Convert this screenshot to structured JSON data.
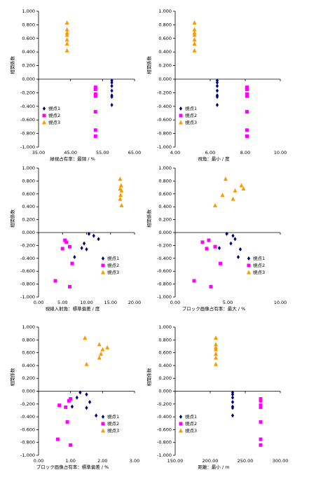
{
  "chart_data": [
    {
      "type": "scatter",
      "xlabel": "緑視占有率：最頻 / %",
      "ylabel": "相関係数",
      "legend": "lower left",
      "xlim": [
        35,
        65
      ],
      "xticks": [
        {
          "value": 35,
          "label": "35.00"
        },
        {
          "value": 45,
          "label": "45.00"
        },
        {
          "value": 55,
          "label": "55.00"
        },
        {
          "value": 65,
          "label": "65.00"
        }
      ],
      "ylim": [
        -1,
        1
      ],
      "yticks": [
        {
          "value": 1,
          "label": "1.000"
        },
        {
          "value": 0.8,
          "label": "0.800"
        },
        {
          "value": 0.6,
          "label": "0.600"
        },
        {
          "value": 0.4,
          "label": "0.400"
        },
        {
          "value": 0.2,
          "label": "0.200"
        },
        {
          "value": 0,
          "label": "0.000"
        },
        {
          "value": -0.2,
          "label": "-0.200"
        },
        {
          "value": -0.4,
          "label": "-0.400"
        },
        {
          "value": -0.6,
          "label": "-0.600"
        },
        {
          "value": -0.8,
          "label": "-0.800"
        },
        {
          "value": -1,
          "label": "-1.000"
        }
      ],
      "series": [
        {
          "name": "視点1",
          "color": "#000080",
          "marker": "diamond",
          "x": [
            57.9,
            57.9,
            57.9,
            57.9,
            57.9,
            57.9,
            57.9
          ],
          "values": [
            -0.02,
            -0.05,
            -0.1,
            -0.17,
            -0.24,
            -0.26,
            -0.38
          ]
        },
        {
          "name": "視点2",
          "color": "#ff00ff",
          "marker": "square",
          "x": [
            52.8,
            52.8,
            52.8,
            52.8,
            52.8,
            52.8,
            52.8
          ],
          "values": [
            -0.12,
            -0.15,
            -0.22,
            -0.25,
            -0.48,
            -0.75,
            -0.84
          ]
        },
        {
          "name": "視点3",
          "color": "#ff9900",
          "marker": "triangle",
          "x": [
            43.9,
            43.9,
            43.9,
            43.9,
            43.9,
            43.9,
            43.9
          ],
          "values": [
            0.83,
            0.73,
            0.68,
            0.65,
            0.58,
            0.52,
            0.42
          ]
        }
      ]
    },
    {
      "type": "scatter",
      "xlabel": "視角：最小 / 度",
      "ylabel": "相関係数",
      "legend": "lower left",
      "xlim": [
        4,
        10
      ],
      "xticks": [
        {
          "value": 4,
          "label": "4.00"
        },
        {
          "value": 6,
          "label": "6.00"
        },
        {
          "value": 8,
          "label": "8.00"
        },
        {
          "value": 10,
          "label": "10.00"
        }
      ],
      "ylim": [
        -1,
        1
      ],
      "yticks": [
        {
          "value": 1,
          "label": "1.000"
        },
        {
          "value": 0.8,
          "label": "0.800"
        },
        {
          "value": 0.6,
          "label": "0.600"
        },
        {
          "value": 0.4,
          "label": "0.400"
        },
        {
          "value": 0.2,
          "label": "0.200"
        },
        {
          "value": 0,
          "label": "0.000"
        },
        {
          "value": -0.2,
          "label": "-0.200"
        },
        {
          "value": -0.4,
          "label": "-0.400"
        },
        {
          "value": -0.6,
          "label": "-0.600"
        },
        {
          "value": -0.8,
          "label": "-0.800"
        },
        {
          "value": -1,
          "label": "-1.000"
        }
      ],
      "series": [
        {
          "name": "視点1",
          "color": "#000080",
          "marker": "diamond",
          "x": [
            6.4,
            6.4,
            6.4,
            6.4,
            6.4,
            6.4,
            6.4
          ],
          "values": [
            -0.02,
            -0.05,
            -0.1,
            -0.17,
            -0.24,
            -0.26,
            -0.38
          ]
        },
        {
          "name": "視点2",
          "color": "#ff00ff",
          "marker": "square",
          "x": [
            8.1,
            8.1,
            8.1,
            8.1,
            8.1,
            8.1,
            8.1
          ],
          "values": [
            -0.12,
            -0.15,
            -0.22,
            -0.25,
            -0.48,
            -0.75,
            -0.84
          ]
        },
        {
          "name": "視点3",
          "color": "#ff9900",
          "marker": "triangle",
          "x": [
            5.1,
            5.1,
            5.1,
            5.1,
            5.1,
            5.1,
            5.1
          ],
          "values": [
            0.83,
            0.73,
            0.68,
            0.65,
            0.58,
            0.52,
            0.42
          ]
        }
      ]
    },
    {
      "type": "scatter",
      "xlabel": "視線入射角：標準偏差 / 度",
      "ylabel": "相関係数",
      "legend": "lower right",
      "xlim": [
        0,
        20
      ],
      "xticks": [
        {
          "value": 0,
          "label": "0.00"
        },
        {
          "value": 5,
          "label": "5.00"
        },
        {
          "value": 10,
          "label": "10.00"
        },
        {
          "value": 15,
          "label": "15.00"
        },
        {
          "value": 20,
          "label": "20.00"
        }
      ],
      "ylim": [
        -1,
        1
      ],
      "yticks": [
        {
          "value": 1,
          "label": "1.000"
        },
        {
          "value": 0.8,
          "label": "0.800"
        },
        {
          "value": 0.6,
          "label": "0.600"
        },
        {
          "value": 0.4,
          "label": "0.400"
        },
        {
          "value": 0.2,
          "label": "0.200"
        },
        {
          "value": 0,
          "label": "0.000"
        },
        {
          "value": -0.2,
          "label": "-0.200"
        },
        {
          "value": -0.4,
          "label": "-0.400"
        },
        {
          "value": -0.6,
          "label": "-0.600"
        },
        {
          "value": -0.8,
          "label": "-0.800"
        },
        {
          "value": -1,
          "label": "-1.000"
        }
      ],
      "series": [
        {
          "name": "視点1",
          "color": "#000080",
          "marker": "diamond",
          "x": [
            10.5,
            11.5,
            12.5,
            9.5,
            9.0,
            10.0,
            7.5
          ],
          "values": [
            -0.02,
            -0.05,
            -0.1,
            -0.17,
            -0.24,
            -0.26,
            -0.38
          ]
        },
        {
          "name": "視点2",
          "color": "#ff00ff",
          "marker": "square",
          "x": [
            5.5,
            5.8,
            6.5,
            5.0,
            7.0,
            3.5,
            6.5
          ],
          "values": [
            -0.12,
            -0.15,
            -0.22,
            -0.25,
            -0.48,
            -0.75,
            -0.84
          ]
        },
        {
          "name": "視点3",
          "color": "#ff9900",
          "marker": "triangle",
          "x": [
            17.0,
            17.2,
            17.0,
            17.3,
            17.1,
            17.0,
            17.3
          ],
          "values": [
            0.83,
            0.73,
            0.68,
            0.65,
            0.58,
            0.52,
            0.42
          ]
        }
      ]
    },
    {
      "type": "scatter",
      "xlabel": "ブロック画像占有率：最大 / %",
      "ylabel": "相関係数",
      "legend": "lower right",
      "xlim": [
        0,
        10
      ],
      "xticks": [
        {
          "value": 0,
          "label": "0.00"
        },
        {
          "value": 5,
          "label": "5.00"
        },
        {
          "value": 10,
          "label": "10.00"
        }
      ],
      "ylim": [
        -1,
        1
      ],
      "yticks": [
        {
          "value": 1,
          "label": "1.000"
        },
        {
          "value": 0.8,
          "label": "0.800"
        },
        {
          "value": 0.6,
          "label": "0.600"
        },
        {
          "value": 0.4,
          "label": "0.400"
        },
        {
          "value": 0.2,
          "label": "0.200"
        },
        {
          "value": 0,
          "label": "0.000"
        },
        {
          "value": -0.2,
          "label": "-0.200"
        },
        {
          "value": -0.4,
          "label": "-0.400"
        },
        {
          "value": -0.6,
          "label": "-0.600"
        },
        {
          "value": -0.8,
          "label": "-0.800"
        },
        {
          "value": -1,
          "label": "-1.000"
        }
      ],
      "series": [
        {
          "name": "視点1",
          "color": "#000080",
          "marker": "diamond",
          "x": [
            4.9,
            5.5,
            5.7,
            5.3,
            4.2,
            6.2,
            6.0
          ],
          "values": [
            -0.02,
            -0.05,
            -0.1,
            -0.17,
            -0.24,
            -0.26,
            -0.38
          ]
        },
        {
          "name": "視点2",
          "color": "#ff00ff",
          "marker": "square",
          "x": [
            3.2,
            2.6,
            3.8,
            3.0,
            4.3,
            1.8,
            3.4
          ],
          "values": [
            -0.12,
            -0.15,
            -0.22,
            -0.25,
            -0.48,
            -0.75,
            -0.84
          ]
        },
        {
          "name": "視点3",
          "color": "#ff9900",
          "marker": "triangle",
          "x": [
            4.8,
            6.3,
            6.5,
            5.7,
            4.5,
            5.5,
            3.8
          ],
          "values": [
            0.83,
            0.73,
            0.68,
            0.65,
            0.58,
            0.52,
            0.42
          ]
        }
      ]
    },
    {
      "type": "scatter",
      "xlabel": "ブロック画像占有率：標準偏差 / %",
      "ylabel": "相関係数",
      "legend": "lower right",
      "xlim": [
        0,
        3
      ],
      "xticks": [
        {
          "value": 0,
          "label": "0.00"
        },
        {
          "value": 1,
          "label": "1.00"
        },
        {
          "value": 2,
          "label": "2.00"
        },
        {
          "value": 3,
          "label": "3.00"
        }
      ],
      "ylim": [
        -1,
        1
      ],
      "yticks": [
        {
          "value": 1,
          "label": "1.000"
        },
        {
          "value": 0.8,
          "label": "0.800"
        },
        {
          "value": 0.6,
          "label": "0.600"
        },
        {
          "value": 0.4,
          "label": "0.400"
        },
        {
          "value": 0.2,
          "label": "0.200"
        },
        {
          "value": 0,
          "label": "0.000"
        },
        {
          "value": -0.2,
          "label": "-0.200"
        },
        {
          "value": -0.4,
          "label": "-0.400"
        },
        {
          "value": -0.6,
          "label": "-0.600"
        },
        {
          "value": -0.8,
          "label": "-0.800"
        },
        {
          "value": -1,
          "label": "-1.000"
        }
      ],
      "series": [
        {
          "name": "視点1",
          "color": "#000080",
          "marker": "diamond",
          "x": [
            1.3,
            1.5,
            1.2,
            1.6,
            1.05,
            1.5,
            1.8
          ],
          "values": [
            -0.02,
            -0.05,
            -0.1,
            -0.17,
            -0.24,
            -0.26,
            -0.38
          ]
        },
        {
          "name": "視点2",
          "color": "#ff00ff",
          "marker": "square",
          "x": [
            1.0,
            0.95,
            0.65,
            0.85,
            0.9,
            0.6,
            1.0
          ],
          "values": [
            -0.12,
            -0.15,
            -0.22,
            -0.25,
            -0.48,
            -0.75,
            -0.84
          ]
        },
        {
          "name": "視点3",
          "color": "#ff9900",
          "marker": "triangle",
          "x": [
            1.45,
            1.9,
            2.15,
            2.0,
            1.95,
            1.9,
            1.5
          ],
          "values": [
            0.83,
            0.73,
            0.68,
            0.65,
            0.58,
            0.52,
            0.42
          ]
        }
      ]
    },
    {
      "type": "scatter",
      "xlabel": "距離：最小 / m",
      "ylabel": "相関係数",
      "legend": "lower left",
      "xlim": [
        150,
        300
      ],
      "xticks": [
        {
          "value": 150,
          "label": "150.00"
        },
        {
          "value": 200,
          "label": "200.00"
        },
        {
          "value": 250,
          "label": "250.00"
        },
        {
          "value": 300,
          "label": "300.00"
        }
      ],
      "ylim": [
        -1,
        1
      ],
      "yticks": [
        {
          "value": 1,
          "label": "1.000"
        },
        {
          "value": 0.8,
          "label": "0.800"
        },
        {
          "value": 0.6,
          "label": "0.600"
        },
        {
          "value": 0.4,
          "label": "0.400"
        },
        {
          "value": 0.2,
          "label": "0.200"
        },
        {
          "value": 0,
          "label": "0.000"
        },
        {
          "value": -0.2,
          "label": "-0.200"
        },
        {
          "value": -0.4,
          "label": "-0.400"
        },
        {
          "value": -0.6,
          "label": "-0.600"
        },
        {
          "value": -0.8,
          "label": "-0.800"
        },
        {
          "value": -1,
          "label": "-1.000"
        }
      ],
      "series": [
        {
          "name": "視点1",
          "color": "#000080",
          "marker": "diamond",
          "x": [
            232,
            232,
            232,
            232,
            232,
            232,
            232
          ],
          "values": [
            -0.02,
            -0.05,
            -0.1,
            -0.17,
            -0.24,
            -0.26,
            -0.38
          ]
        },
        {
          "name": "視点2",
          "color": "#ff00ff",
          "marker": "square",
          "x": [
            272,
            272,
            272,
            272,
            272,
            272,
            272
          ],
          "values": [
            -0.12,
            -0.15,
            -0.22,
            -0.25,
            -0.48,
            -0.75,
            -0.84
          ]
        },
        {
          "name": "視点3",
          "color": "#ff9900",
          "marker": "triangle",
          "x": [
            208,
            208,
            208,
            208,
            208,
            208,
            208
          ],
          "values": [
            0.83,
            0.73,
            0.68,
            0.65,
            0.58,
            0.52,
            0.42
          ]
        }
      ]
    }
  ]
}
